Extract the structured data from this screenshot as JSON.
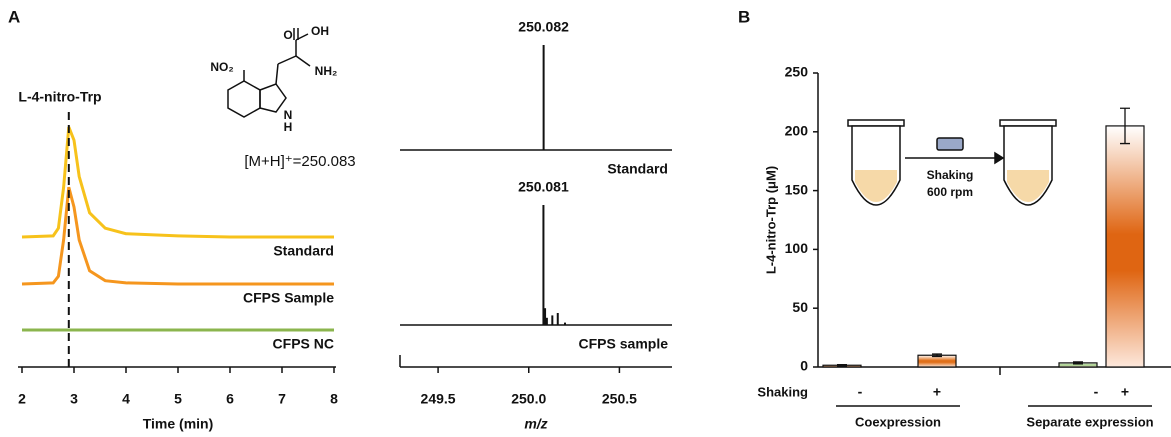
{
  "panel_labels": [
    "A",
    "B"
  ],
  "chart_data": [
    {
      "type": "line",
      "annotations": {
        "compound": "L-4-nitro-Trp",
        "ion": "[M+H]⁺=250.083"
      },
      "marker_x": 2.9,
      "structure_labels": [
        "NO₂",
        "O",
        "OH",
        "NH₂",
        "N",
        "H"
      ],
      "xlabel": "Time (min)",
      "xlim": [
        2,
        8
      ],
      "xticks": [
        2,
        3,
        4,
        5,
        6,
        7,
        8
      ],
      "x": [
        2,
        2.6,
        2.7,
        2.8,
        2.9,
        3.0,
        3.1,
        3.3,
        3.6,
        4,
        5,
        6,
        7,
        8
      ],
      "series": [
        {
          "name": "Standard",
          "color": "#f7c21b",
          "values": [
            0,
            1,
            8,
            45,
            100,
            88,
            55,
            22,
            8,
            3,
            1,
            0,
            0,
            0
          ]
        },
        {
          "name": "CFPS Sample",
          "color": "#f5961e",
          "values": [
            0,
            1,
            7,
            40,
            88,
            70,
            40,
            12,
            3,
            1,
            0,
            0,
            0,
            0
          ]
        },
        {
          "name": "CFPS NC",
          "color": "#8bb54e",
          "values": [
            0,
            0,
            0,
            0,
            0,
            0,
            0,
            0,
            0,
            0,
            0,
            0,
            0,
            0
          ]
        }
      ]
    },
    {
      "type": "spectrum",
      "xlabel": "m/z",
      "xlim": [
        249.29,
        250.79
      ],
      "xticks": [
        249.5,
        {
          "value": 250,
          "label": "250.0"
        },
        250.5
      ],
      "series": [
        {
          "name": "Standard",
          "color": "#111111",
          "peak_label": "250.082",
          "x": [
            250.082
          ],
          "values": [
            100
          ]
        },
        {
          "name": "CFPS sample",
          "color": "#111111",
          "peak_label": "250.081",
          "x": [
            250.081,
            250.09,
            250.1,
            250.13,
            250.16,
            250.2
          ],
          "values": [
            100,
            14,
            6,
            8,
            10,
            2
          ]
        }
      ]
    },
    {
      "type": "bar",
      "ylabel": "L-4-nitro-Trp (μM)",
      "ylim": [
        0,
        250
      ],
      "yticks": [
        0,
        50,
        100,
        150,
        200,
        250
      ],
      "row_label": "Shaking",
      "categories": [
        "-",
        "+",
        "-",
        "+"
      ],
      "groups": [
        "Coexpression",
        "Separate expression"
      ],
      "values": [
        1.5,
        10,
        3.5,
        205
      ],
      "errors": [
        0.5,
        1,
        0.8,
        15
      ],
      "colors": [
        "#e8a070",
        "#e0701a",
        "#a8d08d",
        "#df6512"
      ],
      "inset_labels": [
        "Shaking",
        "600 rpm"
      ]
    }
  ]
}
